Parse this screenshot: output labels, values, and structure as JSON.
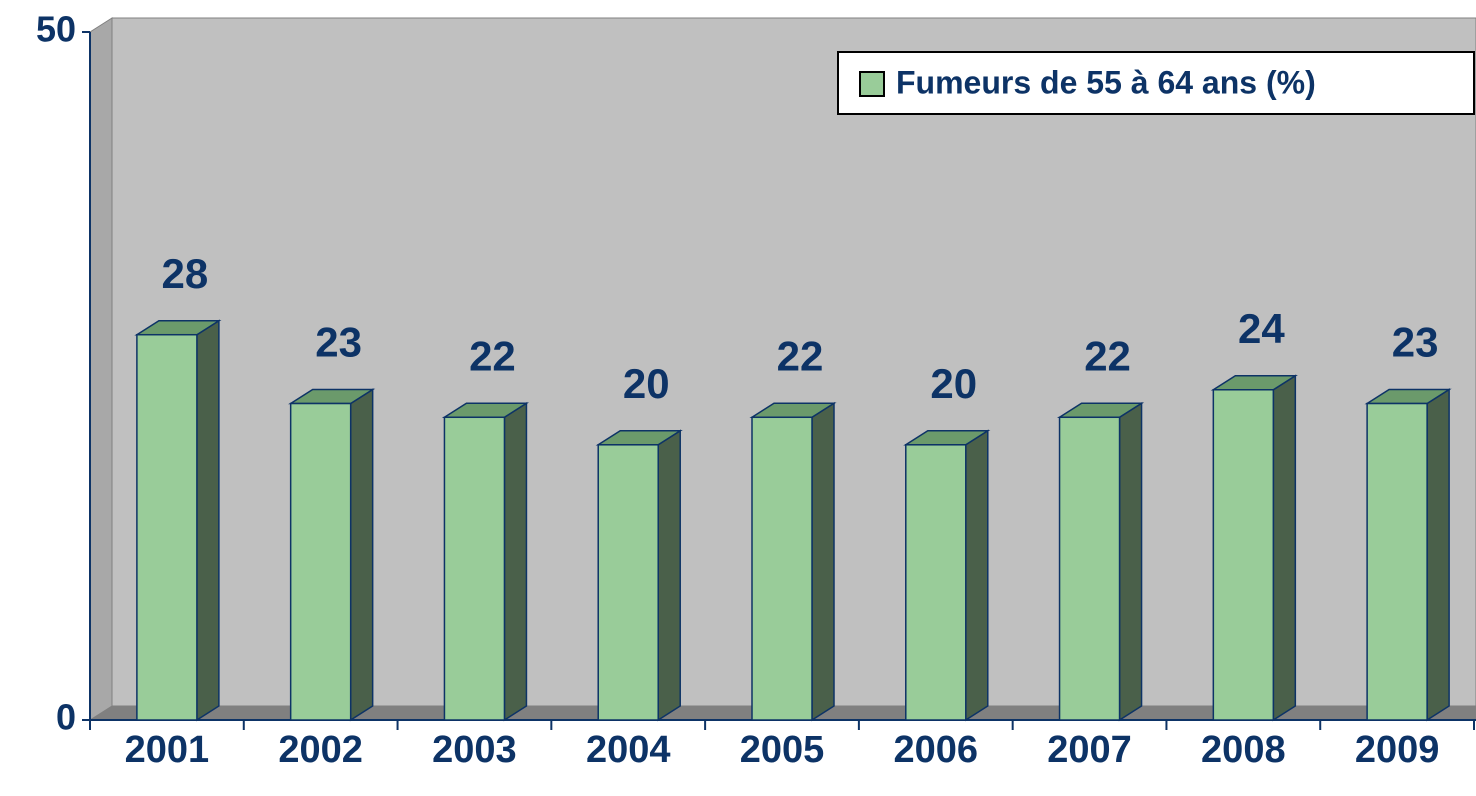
{
  "chart_data": {
    "type": "bar3d",
    "categories": [
      "2001",
      "2002",
      "2003",
      "2004",
      "2005",
      "2006",
      "2007",
      "2008",
      "2009"
    ],
    "series": [
      {
        "name": "Fumeurs de 55 à 64 ans (%)",
        "color": "#99cc99",
        "values": [
          28,
          23,
          22,
          20,
          22,
          20,
          22,
          24,
          23
        ]
      }
    ],
    "ylim": [
      0,
      50
    ],
    "yticks": [
      0,
      50
    ],
    "legend": "top-right",
    "data_labels": true
  }
}
